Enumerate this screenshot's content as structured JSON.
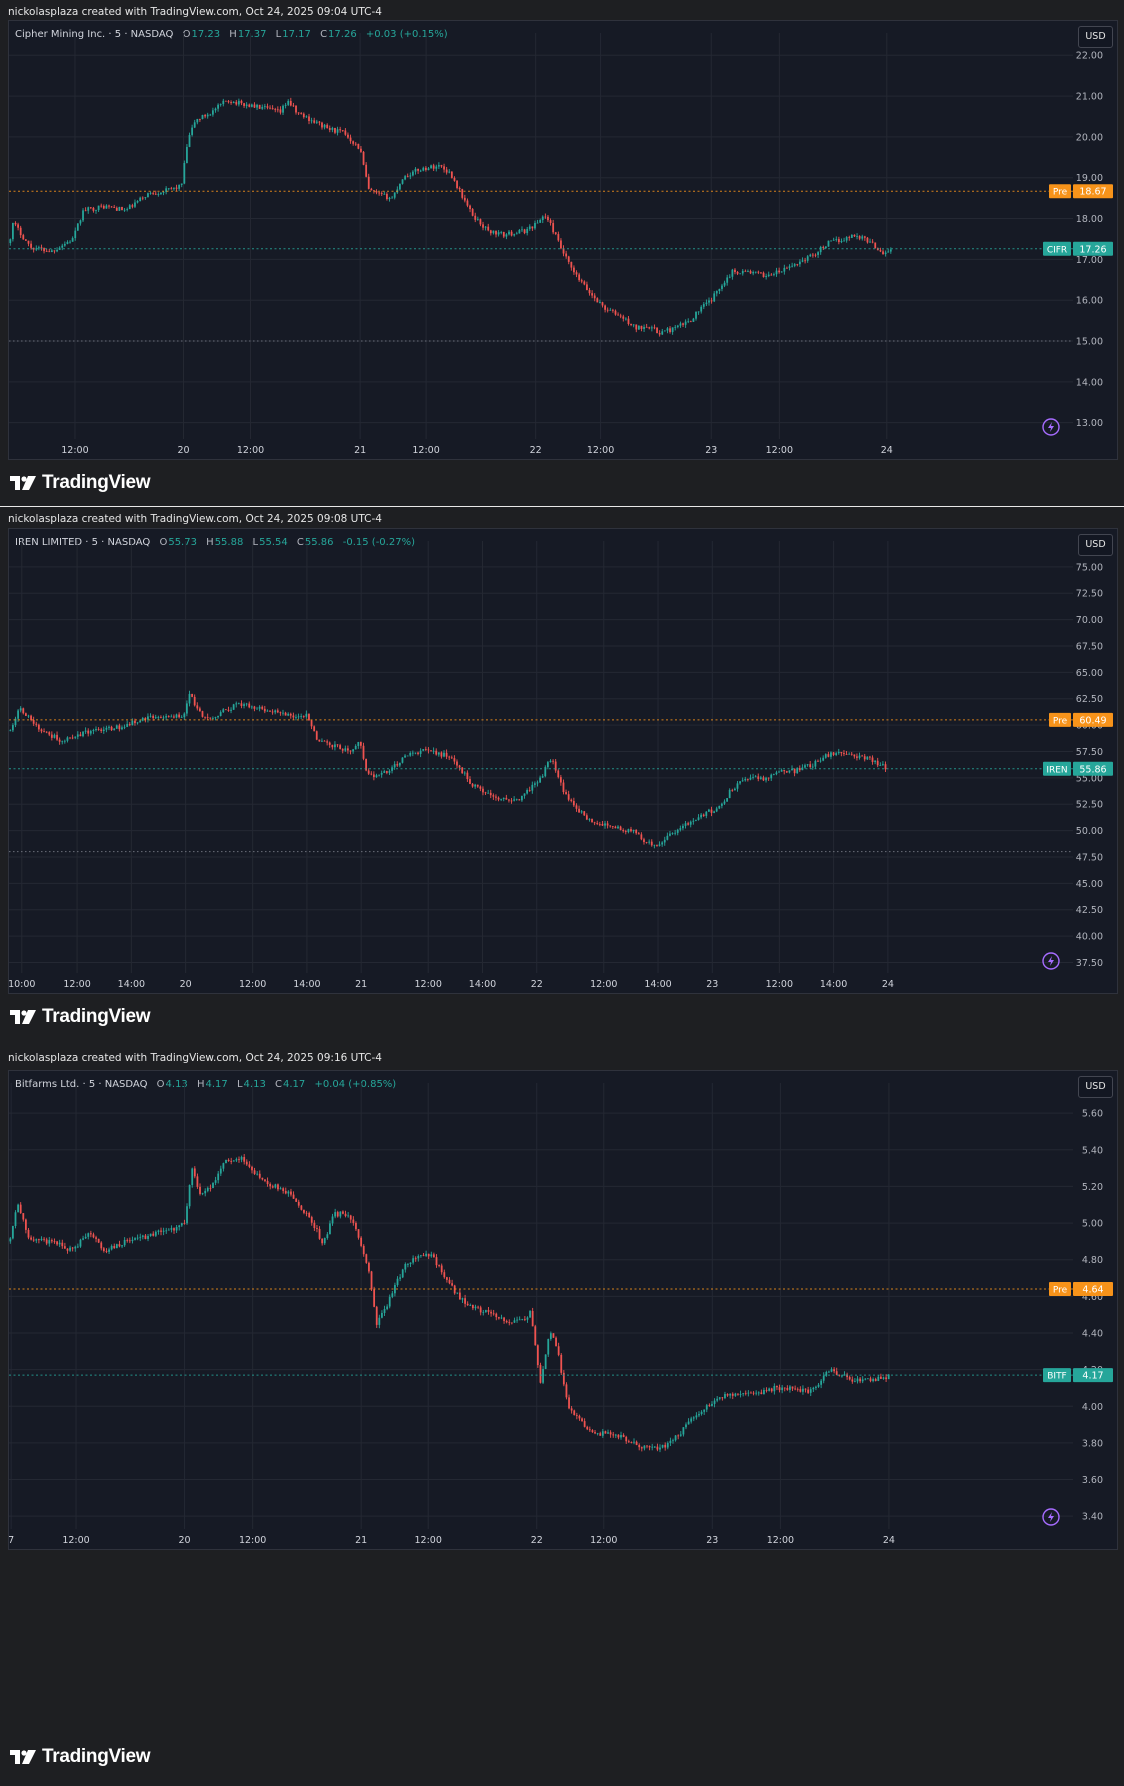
{
  "charts": [
    {
      "credit": "nickolasplaza created with TradingView.com, Oct 24, 2025 09:04 UTC-4",
      "header": {
        "name": "Cipher Mining Inc. · 5 · NASDAQ",
        "o_label": "O",
        "o": "17.23",
        "h_label": "H",
        "h": "17.37",
        "l_label": "L",
        "l": "17.17",
        "c_label": "C",
        "c": "17.26",
        "chg": "+0.03 (+0.15%)"
      },
      "usd": "USD",
      "brand": "TradingView"
    },
    {
      "credit": "nickolasplaza created with TradingView.com, Oct 24, 2025 09:08 UTC-4",
      "header": {
        "name": "IREN LIMITED · 5 · NASDAQ",
        "o_label": "O",
        "o": "55.73",
        "h_label": "H",
        "h": "55.88",
        "l_label": "L",
        "l": "55.54",
        "c_label": "C",
        "c": "55.86",
        "chg": "-0.15 (-0.27%)"
      },
      "usd": "USD",
      "brand": "TradingView"
    },
    {
      "credit": "nickolasplaza created with TradingView.com, Oct 24, 2025 09:16 UTC-4",
      "header": {
        "name": "Bitfarms Ltd. · 5 · NASDAQ",
        "o_label": "O",
        "o": "4.13",
        "h_label": "H",
        "h": "4.17",
        "l_label": "L",
        "l": "4.13",
        "c_label": "C",
        "c": "4.17",
        "chg": "+0.04 (+0.85%)"
      },
      "usd": "USD",
      "brand": "TradingView"
    }
  ],
  "colors": {
    "up": "#26a69a",
    "down": "#ef5350",
    "pre": "#f7931a",
    "grid": "#242833",
    "axis_text": "#b2b5be",
    "bg": "#161a25"
  },
  "chart_data": [
    {
      "type": "candlestick",
      "symbol": "CIFR",
      "ylim": [
        12.6,
        22.3
      ],
      "yticks": [
        13.0,
        14.0,
        15.0,
        16.0,
        17.0,
        18.0,
        19.0,
        20.0,
        21.0,
        22.0
      ],
      "xticks": [
        "12:00",
        "20",
        "12:00",
        "21",
        "12:00",
        "22",
        "12:00",
        "23",
        "12:00",
        "24"
      ],
      "xrange": [
        0,
        1
      ],
      "xtick_positions": [
        0.062,
        0.164,
        0.227,
        0.33,
        0.392,
        0.495,
        0.556,
        0.66,
        0.724,
        0.825
      ],
      "price_path": [
        [
          0.0,
          17.4
        ],
        [
          0.004,
          17.9
        ],
        [
          0.02,
          17.3
        ],
        [
          0.04,
          17.2
        ],
        [
          0.06,
          17.5
        ],
        [
          0.07,
          18.2
        ],
        [
          0.09,
          18.3
        ],
        [
          0.11,
          18.2
        ],
        [
          0.13,
          18.6
        ],
        [
          0.15,
          18.7
        ],
        [
          0.162,
          18.8
        ],
        [
          0.168,
          19.9
        ],
        [
          0.175,
          20.4
        ],
        [
          0.19,
          20.6
        ],
        [
          0.205,
          20.9
        ],
        [
          0.22,
          20.8
        ],
        [
          0.24,
          20.7
        ],
        [
          0.255,
          20.6
        ],
        [
          0.262,
          20.9
        ],
        [
          0.27,
          20.6
        ],
        [
          0.285,
          20.4
        ],
        [
          0.3,
          20.2
        ],
        [
          0.315,
          20.1
        ],
        [
          0.33,
          19.7
        ],
        [
          0.338,
          18.7
        ],
        [
          0.345,
          18.6
        ],
        [
          0.36,
          18.5
        ],
        [
          0.37,
          19.0
        ],
        [
          0.385,
          19.2
        ],
        [
          0.405,
          19.3
        ],
        [
          0.415,
          19.1
        ],
        [
          0.425,
          18.6
        ],
        [
          0.435,
          18.1
        ],
        [
          0.45,
          17.7
        ],
        [
          0.465,
          17.6
        ],
        [
          0.485,
          17.7
        ],
        [
          0.497,
          17.9
        ],
        [
          0.503,
          18.1
        ],
        [
          0.51,
          17.8
        ],
        [
          0.52,
          17.2
        ],
        [
          0.53,
          16.7
        ],
        [
          0.545,
          16.2
        ],
        [
          0.56,
          15.8
        ],
        [
          0.575,
          15.6
        ],
        [
          0.59,
          15.3
        ],
        [
          0.6,
          15.4
        ],
        [
          0.61,
          15.2
        ],
        [
          0.625,
          15.3
        ],
        [
          0.64,
          15.5
        ],
        [
          0.65,
          15.8
        ],
        [
          0.66,
          16.0
        ],
        [
          0.67,
          16.4
        ],
        [
          0.68,
          16.7
        ],
        [
          0.695,
          16.7
        ],
        [
          0.71,
          16.6
        ],
        [
          0.725,
          16.7
        ],
        [
          0.74,
          16.9
        ],
        [
          0.755,
          17.1
        ],
        [
          0.77,
          17.4
        ],
        [
          0.785,
          17.5
        ],
        [
          0.795,
          17.6
        ],
        [
          0.805,
          17.5
        ],
        [
          0.815,
          17.3
        ],
        [
          0.822,
          17.15
        ],
        [
          0.83,
          17.26
        ]
      ],
      "price_lines": [
        {
          "label": "Pre",
          "value": "18.67",
          "kind": "pre"
        },
        {
          "label": "CIFR",
          "value": "17.26",
          "kind": "last"
        }
      ],
      "extra_dotted": [
        15.0
      ]
    },
    {
      "type": "candlestick",
      "symbol": "IREN",
      "ylim": [
        36.5,
        76.5
      ],
      "yticks": [
        37.5,
        40.0,
        42.5,
        45.0,
        47.5,
        50.0,
        52.5,
        55.0,
        57.5,
        60.0,
        62.5,
        65.0,
        67.5,
        70.0,
        72.5,
        75.0
      ],
      "xticks": [
        "10:00",
        "12:00",
        "14:00",
        "20",
        "12:00",
        "14:00",
        "21",
        "12:00",
        "14:00",
        "22",
        "12:00",
        "14:00",
        "23",
        "12:00",
        "14:00",
        "24"
      ],
      "xrange": [
        0,
        1
      ],
      "xtick_positions": [
        0.012,
        0.064,
        0.115,
        0.166,
        0.229,
        0.28,
        0.331,
        0.394,
        0.445,
        0.496,
        0.559,
        0.61,
        0.661,
        0.724,
        0.775,
        0.826
      ],
      "price_path": [
        [
          0.0,
          59.5
        ],
        [
          0.01,
          61.5
        ],
        [
          0.03,
          59.5
        ],
        [
          0.05,
          58.5
        ],
        [
          0.07,
          59.3
        ],
        [
          0.09,
          59.5
        ],
        [
          0.11,
          60.0
        ],
        [
          0.13,
          60.8
        ],
        [
          0.15,
          60.7
        ],
        [
          0.165,
          61.0
        ],
        [
          0.17,
          63.0
        ],
        [
          0.18,
          61.0
        ],
        [
          0.19,
          60.5
        ],
        [
          0.2,
          61.2
        ],
        [
          0.215,
          62.0
        ],
        [
          0.23,
          61.7
        ],
        [
          0.25,
          61.2
        ],
        [
          0.27,
          60.8
        ],
        [
          0.28,
          61.0
        ],
        [
          0.29,
          58.5
        ],
        [
          0.305,
          58.0
        ],
        [
          0.32,
          57.5
        ],
        [
          0.33,
          58.5
        ],
        [
          0.335,
          55.5
        ],
        [
          0.345,
          55.0
        ],
        [
          0.36,
          56.0
        ],
        [
          0.375,
          57.2
        ],
        [
          0.39,
          57.5
        ],
        [
          0.41,
          57.2
        ],
        [
          0.425,
          55.8
        ],
        [
          0.435,
          54.3
        ],
        [
          0.45,
          53.5
        ],
        [
          0.465,
          53.0
        ],
        [
          0.48,
          53.0
        ],
        [
          0.49,
          54.0
        ],
        [
          0.5,
          55.0
        ],
        [
          0.51,
          57.0
        ],
        [
          0.52,
          54.0
        ],
        [
          0.53,
          52.5
        ],
        [
          0.545,
          51.0
        ],
        [
          0.56,
          50.5
        ],
        [
          0.575,
          50.2
        ],
        [
          0.59,
          49.8
        ],
        [
          0.6,
          48.8
        ],
        [
          0.61,
          48.7
        ],
        [
          0.62,
          49.5
        ],
        [
          0.635,
          50.5
        ],
        [
          0.65,
          51.5
        ],
        [
          0.665,
          52.0
        ],
        [
          0.68,
          54.0
        ],
        [
          0.695,
          55.0
        ],
        [
          0.71,
          55.0
        ],
        [
          0.725,
          55.5
        ],
        [
          0.74,
          55.7
        ],
        [
          0.755,
          56.2
        ],
        [
          0.77,
          57.2
        ],
        [
          0.785,
          57.5
        ],
        [
          0.8,
          57.0
        ],
        [
          0.815,
          56.5
        ],
        [
          0.825,
          55.86
        ]
      ],
      "price_lines": [
        {
          "label": "Pre",
          "value": "60.49",
          "kind": "pre"
        },
        {
          "label": "IREN",
          "value": "55.86",
          "kind": "last"
        }
      ],
      "extra_dotted": [
        48.0
      ]
    },
    {
      "type": "candlestick",
      "symbol": "BITF",
      "ylim": [
        3.33,
        5.71
      ],
      "yticks": [
        3.4,
        3.6,
        3.8,
        4.0,
        4.2,
        4.4,
        4.6,
        4.8,
        5.0,
        5.2,
        5.4,
        5.6
      ],
      "xticks": [
        "7",
        "12:00",
        "20",
        "12:00",
        "21",
        "12:00",
        "22",
        "12:00",
        "23",
        "12:00",
        "24"
      ],
      "xrange": [
        0,
        1
      ],
      "xtick_positions": [
        0.002,
        0.063,
        0.165,
        0.229,
        0.331,
        0.394,
        0.496,
        0.559,
        0.661,
        0.725,
        0.827
      ],
      "price_path": [
        [
          0.0,
          4.9
        ],
        [
          0.008,
          5.1
        ],
        [
          0.02,
          4.9
        ],
        [
          0.04,
          4.9
        ],
        [
          0.06,
          4.85
        ],
        [
          0.075,
          4.95
        ],
        [
          0.09,
          4.85
        ],
        [
          0.11,
          4.9
        ],
        [
          0.13,
          4.93
        ],
        [
          0.15,
          4.96
        ],
        [
          0.165,
          5.0
        ],
        [
          0.172,
          5.3
        ],
        [
          0.18,
          5.15
        ],
        [
          0.19,
          5.2
        ],
        [
          0.205,
          5.35
        ],
        [
          0.22,
          5.35
        ],
        [
          0.235,
          5.25
        ],
        [
          0.25,
          5.2
        ],
        [
          0.265,
          5.15
        ],
        [
          0.28,
          5.05
        ],
        [
          0.29,
          4.95
        ],
        [
          0.295,
          4.88
        ],
        [
          0.305,
          5.05
        ],
        [
          0.315,
          5.05
        ],
        [
          0.325,
          5.0
        ],
        [
          0.338,
          4.75
        ],
        [
          0.345,
          4.45
        ],
        [
          0.355,
          4.55
        ],
        [
          0.37,
          4.75
        ],
        [
          0.385,
          4.83
        ],
        [
          0.398,
          4.82
        ],
        [
          0.41,
          4.7
        ],
        [
          0.425,
          4.58
        ],
        [
          0.44,
          4.53
        ],
        [
          0.455,
          4.5
        ],
        [
          0.47,
          4.46
        ],
        [
          0.485,
          4.48
        ],
        [
          0.49,
          4.52
        ],
        [
          0.5,
          4.12
        ],
        [
          0.508,
          4.42
        ],
        [
          0.515,
          4.32
        ],
        [
          0.525,
          4.0
        ],
        [
          0.54,
          3.9
        ],
        [
          0.555,
          3.85
        ],
        [
          0.57,
          3.85
        ],
        [
          0.585,
          3.8
        ],
        [
          0.6,
          3.77
        ],
        [
          0.615,
          3.78
        ],
        [
          0.63,
          3.85
        ],
        [
          0.645,
          3.95
        ],
        [
          0.66,
          4.02
        ],
        [
          0.675,
          4.06
        ],
        [
          0.69,
          4.06
        ],
        [
          0.705,
          4.07
        ],
        [
          0.72,
          4.1
        ],
        [
          0.735,
          4.1
        ],
        [
          0.75,
          4.08
        ],
        [
          0.76,
          4.1
        ],
        [
          0.77,
          4.2
        ],
        [
          0.78,
          4.18
        ],
        [
          0.79,
          4.15
        ],
        [
          0.805,
          4.14
        ],
        [
          0.82,
          4.15
        ],
        [
          0.828,
          4.17
        ]
      ],
      "price_lines": [
        {
          "label": "Pre",
          "value": "4.64",
          "kind": "pre"
        },
        {
          "label": "BITF",
          "value": "4.17",
          "kind": "last"
        }
      ],
      "extra_dotted": []
    }
  ]
}
